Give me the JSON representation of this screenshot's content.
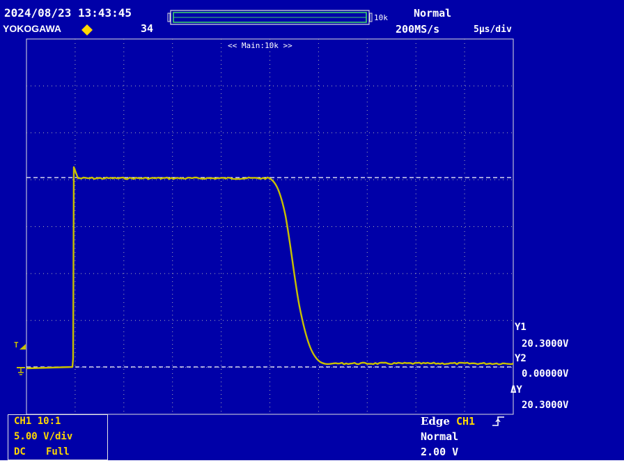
{
  "header": {
    "datetime": "2024/08/23 13:43:45",
    "brand": "YOKOGAWA",
    "acq_count": "34",
    "record_length": "10k",
    "trigger_mode": "Normal",
    "sample_rate": "200MS/s",
    "time_div": "5μs/div"
  },
  "display": {
    "zoom_label": "<< Main:10k >>",
    "trigger_marker": "T",
    "ground_marker": "1"
  },
  "cursors": {
    "y1_label": "Y1",
    "y1_value": "20.3000V",
    "y2_label": "Y2",
    "y2_value": "0.00000V",
    "dy_label": "ΔY",
    "dy_value": "20.3000V"
  },
  "channel": {
    "name_probe": "CH1 10:1",
    "vdiv": "5.00 V/div",
    "coupling": "DC",
    "bandwidth": "Full"
  },
  "trigger": {
    "type": "Edge",
    "source": "CH1",
    "slope_icon": "rising-edge-icon",
    "mode": "Normal",
    "level": "2.00 V"
  },
  "colors": {
    "background": "#0000a8",
    "trace": "#c8c000",
    "grid": "#c8c8c8",
    "text": "#ffffff",
    "accent": "#ffd800"
  }
}
